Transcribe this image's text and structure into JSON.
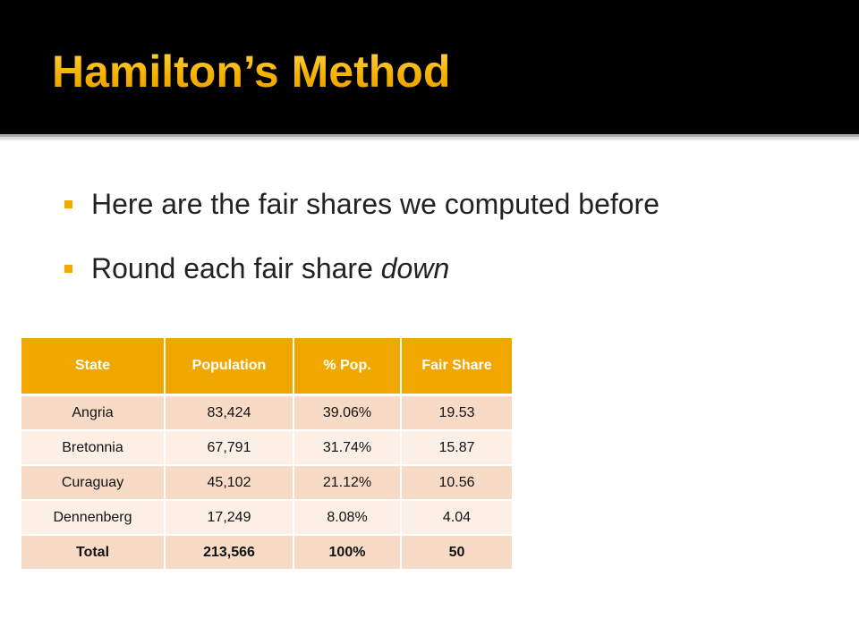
{
  "slide": {
    "title": "Hamilton’s Method",
    "accent_color": "#f0a800",
    "bullets": [
      {
        "text": "Here are the fair shares we computed before"
      },
      {
        "text_before": "Round each fair share ",
        "text_emphasis": "down"
      }
    ]
  },
  "table": {
    "headers": [
      "State",
      "Population",
      "% Pop.",
      "Fair Share"
    ],
    "rows": [
      [
        "Angria",
        "83,424",
        "39.06%",
        "19.53"
      ],
      [
        "Bretonnia",
        "67,791",
        "31.74%",
        "15.87"
      ],
      [
        "Curaguay",
        "45,102",
        "21.12%",
        "10.56"
      ],
      [
        "Dennenberg",
        "17,249",
        "8.08%",
        "4.04"
      ]
    ],
    "total": [
      "Total",
      "213,566",
      "100%",
      "50"
    ]
  }
}
